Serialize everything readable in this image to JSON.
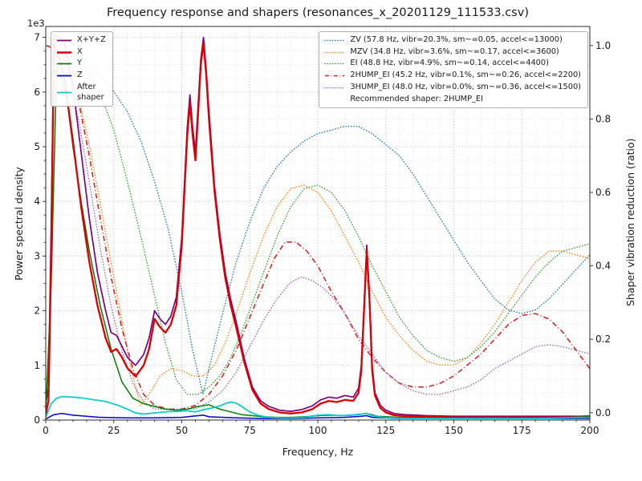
{
  "figure": {
    "title": "Frequency response and shapers (resonances_x_20201129_111533.csv)",
    "xlabel": "Frequency, Hz",
    "ylabel_left": "Power spectral density",
    "ylabel_right": "Shaper vibration reduction (ratio)",
    "offset_text": "1e3"
  },
  "axes": {
    "xticks": [
      0,
      25,
      50,
      75,
      100,
      125,
      150,
      175,
      200
    ],
    "yticks_left": [
      0,
      1,
      2,
      3,
      4,
      5,
      6,
      7
    ],
    "yticks_right": [
      0,
      0.2,
      0.4,
      0.6,
      0.8,
      1.0
    ]
  },
  "legend_left": {
    "items": [
      {
        "label": "X+Y+Z",
        "color": "#7f007f",
        "style": "solid",
        "lw": 1.8
      },
      {
        "label": "X",
        "color": "#dd0000",
        "style": "solid",
        "lw": 2.4
      },
      {
        "label": "Y",
        "color": "#008000",
        "style": "solid",
        "lw": 1.8
      },
      {
        "label": "Z",
        "color": "#0000cc",
        "style": "solid",
        "lw": 1.8
      },
      {
        "label": "After\nshaper",
        "color": "#00cccc",
        "style": "solid",
        "lw": 1.8
      }
    ]
  },
  "legend_right": {
    "items": [
      {
        "label": "ZV (57.8 Hz, vibr=20.3%, sm~=0.05, accel<=13000)",
        "color": "#1f77b4",
        "style": "dotted",
        "lw": 1.5
      },
      {
        "label": "MZV (34.8 Hz, vibr=3.6%, sm~=0.17, accel<=3600)",
        "color": "#ff7f0e",
        "style": "dotted",
        "lw": 1.5
      },
      {
        "label": "EI (48.8 Hz, vibr=4.9%, sm~=0.14, accel<=4400)",
        "color": "#2ca02c",
        "style": "dotted",
        "lw": 1.5
      },
      {
        "label": "2HUMP_EI (45.2 Hz, vibr=0.1%, sm~=0.26, accel<=2200)",
        "color": "#d62728",
        "style": "dashdot",
        "lw": 1.5
      },
      {
        "label": "3HUMP_EI (48.0 Hz, vibr=0.0%, sm~=0.36, accel<=1500)",
        "color": "#9467bd",
        "style": "dotted",
        "lw": 1.5
      },
      {
        "label": "Recommended shaper: 2HUMP_EI",
        "color": null
      }
    ]
  },
  "chart_data": {
    "type": "line",
    "title": "Frequency response and shapers (resonances_x_20201129_111533.csv)",
    "xlabel": "Frequency, Hz",
    "ylabel_left": "Power spectral density (1e3)",
    "ylabel_right": "Shaper vibration reduction (ratio)",
    "xlim": [
      0,
      200
    ],
    "ylim_left": [
      0,
      7.2
    ],
    "ylim_right": [
      -0.02,
      1.052
    ],
    "grid": true,
    "legend_positions": [
      "upper left",
      "upper right"
    ],
    "series": [
      {
        "name": "ZV",
        "axis": "right",
        "color": "#1f77b4",
        "style": "dotted",
        "lw": 1.5,
        "x": [
          0,
          5,
          10,
          15,
          20,
          25,
          30,
          35,
          40,
          45,
          50,
          54,
          57.8,
          61,
          65,
          70,
          75,
          80,
          85,
          90,
          95,
          100,
          105,
          110,
          115,
          120,
          125,
          130,
          135,
          140,
          145,
          150,
          155,
          160,
          165,
          170,
          175,
          180,
          185,
          190,
          195,
          200
        ],
        "y": [
          1.0,
          0.995,
          0.98,
          0.955,
          0.92,
          0.875,
          0.82,
          0.74,
          0.63,
          0.5,
          0.33,
          0.17,
          0.05,
          0.15,
          0.27,
          0.41,
          0.52,
          0.61,
          0.67,
          0.71,
          0.74,
          0.76,
          0.77,
          0.78,
          0.78,
          0.76,
          0.73,
          0.7,
          0.65,
          0.59,
          0.53,
          0.47,
          0.41,
          0.36,
          0.31,
          0.28,
          0.27,
          0.28,
          0.31,
          0.35,
          0.39,
          0.43
        ]
      },
      {
        "name": "MZV",
        "axis": "right",
        "color": "#ff7f0e",
        "style": "dotted",
        "lw": 1.5,
        "x": [
          0,
          4,
          8,
          12,
          16,
          20,
          24,
          28,
          31,
          34.8,
          38,
          42,
          46,
          50,
          54,
          58,
          62,
          66,
          70,
          75,
          80,
          85,
          90,
          95,
          100,
          105,
          110,
          115,
          120,
          125,
          130,
          135,
          140,
          145,
          150,
          155,
          160,
          165,
          170,
          175,
          180,
          185,
          190,
          195,
          200
        ],
        "y": [
          1.0,
          0.99,
          0.95,
          0.86,
          0.73,
          0.57,
          0.41,
          0.25,
          0.13,
          0.02,
          0.05,
          0.1,
          0.12,
          0.115,
          0.1,
          0.1,
          0.13,
          0.19,
          0.27,
          0.38,
          0.48,
          0.56,
          0.61,
          0.62,
          0.6,
          0.55,
          0.48,
          0.41,
          0.33,
          0.26,
          0.21,
          0.17,
          0.14,
          0.13,
          0.13,
          0.15,
          0.19,
          0.24,
          0.3,
          0.36,
          0.41,
          0.44,
          0.44,
          0.43,
          0.42
        ]
      },
      {
        "name": "EI",
        "axis": "right",
        "color": "#2ca02c",
        "style": "dotted",
        "lw": 1.5,
        "x": [
          0,
          5,
          10,
          15,
          20,
          25,
          30,
          35,
          40,
          44,
          48,
          52,
          56,
          60,
          64,
          68,
          72,
          76,
          80,
          85,
          90,
          95,
          100,
          105,
          110,
          115,
          120,
          125,
          130,
          135,
          140,
          145,
          150,
          155,
          160,
          165,
          170,
          175,
          180,
          185,
          190,
          195,
          200
        ],
        "y": [
          1.0,
          0.995,
          0.98,
          0.94,
          0.87,
          0.77,
          0.63,
          0.48,
          0.32,
          0.19,
          0.09,
          0.05,
          0.05,
          0.07,
          0.1,
          0.15,
          0.22,
          0.3,
          0.38,
          0.48,
          0.56,
          0.61,
          0.62,
          0.6,
          0.55,
          0.48,
          0.4,
          0.33,
          0.26,
          0.21,
          0.17,
          0.15,
          0.14,
          0.15,
          0.18,
          0.22,
          0.27,
          0.32,
          0.37,
          0.41,
          0.44,
          0.45,
          0.46
        ]
      },
      {
        "name": "2HUMP_EI",
        "axis": "right",
        "color": "#d62728",
        "style": "dashdot",
        "lw": 1.6,
        "x": [
          0,
          4,
          8,
          12,
          16,
          20,
          24,
          28,
          32,
          36,
          40,
          45,
          50,
          55,
          60,
          65,
          70,
          75,
          80,
          84,
          88,
          92,
          96,
          100,
          105,
          110,
          115,
          120,
          125,
          130,
          135,
          140,
          145,
          150,
          155,
          160,
          165,
          170,
          175,
          180,
          185,
          190,
          195,
          200
        ],
        "y": [
          1.0,
          0.99,
          0.95,
          0.85,
          0.7,
          0.53,
          0.37,
          0.23,
          0.12,
          0.05,
          0.02,
          0.01,
          0.01,
          0.02,
          0.05,
          0.1,
          0.17,
          0.26,
          0.35,
          0.42,
          0.465,
          0.465,
          0.44,
          0.4,
          0.33,
          0.27,
          0.2,
          0.15,
          0.11,
          0.08,
          0.07,
          0.07,
          0.08,
          0.1,
          0.13,
          0.16,
          0.2,
          0.24,
          0.265,
          0.27,
          0.255,
          0.22,
          0.17,
          0.12
        ]
      },
      {
        "name": "3HUMP_EI",
        "axis": "right",
        "color": "#9467bd",
        "style": "dotted",
        "lw": 1.5,
        "x": [
          0,
          4,
          8,
          12,
          16,
          20,
          24,
          28,
          32,
          36,
          40,
          45,
          50,
          55,
          60,
          65,
          70,
          75,
          80,
          85,
          90,
          94,
          98,
          102,
          106,
          110,
          115,
          120,
          125,
          130,
          135,
          140,
          145,
          150,
          155,
          160,
          165,
          170,
          175,
          180,
          185,
          190,
          195,
          200
        ],
        "y": [
          1.0,
          0.985,
          0.93,
          0.8,
          0.63,
          0.45,
          0.29,
          0.17,
          0.08,
          0.03,
          0.01,
          0.01,
          0.01,
          0.01,
          0.03,
          0.06,
          0.11,
          0.18,
          0.25,
          0.31,
          0.355,
          0.37,
          0.36,
          0.34,
          0.31,
          0.27,
          0.21,
          0.16,
          0.11,
          0.08,
          0.06,
          0.05,
          0.05,
          0.06,
          0.07,
          0.09,
          0.12,
          0.14,
          0.16,
          0.18,
          0.185,
          0.18,
          0.17,
          0.16
        ]
      },
      {
        "name": "X+Y+Z",
        "axis": "left",
        "color": "#7f007f",
        "style": "solid",
        "lw": 1.7,
        "x": [
          0,
          1,
          2,
          3,
          5,
          7,
          10,
          13,
          16,
          19,
          22,
          24,
          26,
          28,
          30,
          33,
          36,
          38,
          40,
          42,
          44,
          46,
          48,
          50,
          51,
          52,
          53,
          54,
          55,
          56,
          57,
          58,
          59,
          60,
          62,
          64,
          66,
          68,
          70,
          73,
          76,
          79,
          82,
          86,
          90,
          94,
          98,
          101,
          104,
          107,
          110,
          113,
          115,
          116,
          117,
          118,
          119,
          120,
          121,
          123,
          125,
          128,
          132,
          140,
          150,
          160,
          170,
          180,
          190,
          200
        ],
        "y": [
          0.3,
          0.6,
          3.6,
          7.05,
          7.0,
          6.9,
          6.1,
          4.9,
          3.7,
          2.7,
          2.0,
          1.6,
          1.55,
          1.35,
          1.15,
          1.0,
          1.2,
          1.5,
          2.0,
          1.85,
          1.75,
          1.9,
          2.25,
          3.35,
          4.35,
          5.35,
          5.95,
          5.35,
          4.9,
          5.75,
          6.6,
          7.0,
          6.4,
          5.65,
          4.3,
          3.4,
          2.7,
          2.2,
          1.8,
          1.12,
          0.6,
          0.35,
          0.25,
          0.18,
          0.16,
          0.19,
          0.26,
          0.37,
          0.42,
          0.4,
          0.45,
          0.42,
          0.58,
          1.0,
          2.1,
          3.2,
          2.3,
          1.0,
          0.5,
          0.27,
          0.18,
          0.12,
          0.1,
          0.08,
          0.07,
          0.07,
          0.07,
          0.07,
          0.07,
          0.07
        ]
      },
      {
        "name": "Y",
        "axis": "left",
        "color": "#008000",
        "style": "solid",
        "lw": 1.5,
        "x": [
          0,
          2,
          4,
          6,
          8,
          10,
          13,
          16,
          20,
          24,
          28,
          32,
          36,
          40,
          44,
          48,
          52,
          56,
          60,
          64,
          68,
          72,
          76,
          80,
          85,
          90,
          95,
          100,
          105,
          110,
          115,
          118,
          122,
          130,
          140,
          150,
          160,
          170,
          180,
          190,
          200
        ],
        "y": [
          0.1,
          2.5,
          6.5,
          6.2,
          5.8,
          5.0,
          4.0,
          3.1,
          2.1,
          1.3,
          0.7,
          0.4,
          0.3,
          0.25,
          0.2,
          0.18,
          0.2,
          0.25,
          0.28,
          0.2,
          0.15,
          0.1,
          0.08,
          0.06,
          0.05,
          0.05,
          0.06,
          0.08,
          0.09,
          0.08,
          0.1,
          0.12,
          0.07,
          0.05,
          0.04,
          0.04,
          0.04,
          0.04,
          0.04,
          0.05,
          0.08
        ]
      },
      {
        "name": "Z",
        "axis": "left",
        "color": "#0000cc",
        "style": "solid",
        "lw": 1.5,
        "x": [
          0,
          3,
          6,
          10,
          15,
          20,
          30,
          40,
          50,
          56,
          58,
          60,
          70,
          80,
          90,
          100,
          110,
          116,
          118,
          120,
          130,
          140,
          160,
          180,
          200
        ],
        "y": [
          0.02,
          0.1,
          0.12,
          0.09,
          0.07,
          0.05,
          0.04,
          0.04,
          0.05,
          0.08,
          0.09,
          0.06,
          0.04,
          0.03,
          0.03,
          0.04,
          0.05,
          0.07,
          0.08,
          0.05,
          0.03,
          0.03,
          0.03,
          0.03,
          0.03
        ]
      },
      {
        "name": "X",
        "axis": "left",
        "color": "#dd0000",
        "style": "solid",
        "lw": 2.3,
        "x": [
          0,
          1,
          2,
          3,
          5,
          7,
          10,
          13,
          16,
          19,
          22,
          24,
          26,
          28,
          30,
          33,
          36,
          38,
          40,
          42,
          44,
          46,
          48,
          50,
          51,
          52,
          53,
          54,
          55,
          56,
          57,
          58,
          59,
          60,
          62,
          64,
          66,
          68,
          70,
          73,
          76,
          79,
          82,
          86,
          90,
          94,
          98,
          101,
          104,
          107,
          110,
          113,
          115,
          116,
          117,
          118,
          119,
          120,
          121,
          123,
          125,
          128,
          132,
          140,
          150,
          160,
          170,
          180,
          190,
          200
        ],
        "y": [
          0.1,
          0.35,
          3.0,
          6.9,
          6.6,
          6.2,
          5.1,
          3.9,
          2.9,
          2.1,
          1.5,
          1.25,
          1.3,
          1.15,
          0.95,
          0.8,
          1.0,
          1.3,
          1.85,
          1.7,
          1.6,
          1.75,
          2.1,
          3.2,
          4.2,
          5.2,
          5.8,
          5.2,
          4.75,
          5.6,
          6.5,
          6.9,
          6.3,
          5.5,
          4.2,
          3.3,
          2.6,
          2.1,
          1.7,
          1.05,
          0.55,
          0.3,
          0.2,
          0.14,
          0.12,
          0.14,
          0.2,
          0.3,
          0.35,
          0.33,
          0.37,
          0.35,
          0.5,
          0.9,
          2.0,
          3.1,
          2.2,
          0.9,
          0.45,
          0.22,
          0.14,
          0.09,
          0.07,
          0.06,
          0.05,
          0.05,
          0.05,
          0.05,
          0.05,
          0.05
        ]
      },
      {
        "name": "After shaper",
        "axis": "left",
        "color": "#00cccc",
        "style": "solid",
        "lw": 1.7,
        "x": [
          0,
          2,
          4,
          6,
          10,
          14,
          18,
          22,
          26,
          30,
          33,
          36,
          40,
          44,
          48,
          52,
          55,
          58,
          61,
          64,
          66,
          68,
          70,
          72,
          75,
          78,
          82,
          86,
          90,
          95,
          100,
          104,
          108,
          112,
          116,
          118,
          120,
          124,
          128,
          134,
          140,
          150,
          160,
          170,
          180,
          190,
          200
        ],
        "y": [
          0.05,
          0.3,
          0.4,
          0.43,
          0.42,
          0.4,
          0.37,
          0.34,
          0.28,
          0.2,
          0.13,
          0.11,
          0.13,
          0.15,
          0.16,
          0.17,
          0.15,
          0.19,
          0.22,
          0.26,
          0.3,
          0.33,
          0.31,
          0.25,
          0.15,
          0.09,
          0.05,
          0.04,
          0.04,
          0.05,
          0.09,
          0.1,
          0.08,
          0.09,
          0.11,
          0.12,
          0.08,
          0.05,
          0.04,
          0.03,
          0.03,
          0.03,
          0.03,
          0.03,
          0.03,
          0.04,
          0.05
        ]
      }
    ]
  }
}
